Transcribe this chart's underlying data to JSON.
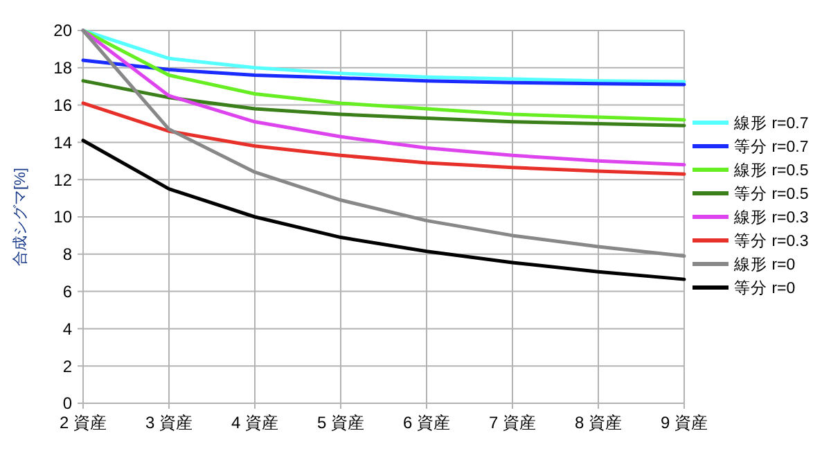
{
  "chart_data": {
    "type": "line",
    "ylabel": "合成シグマ[%]",
    "categories": [
      "2 資産",
      "3 資産",
      "4 資産",
      "5 資産",
      "6 資産",
      "7 資産",
      "8 資産",
      "9 資産"
    ],
    "ylim": [
      0,
      20
    ],
    "yticks": [
      0,
      2,
      4,
      6,
      8,
      10,
      12,
      14,
      16,
      18,
      20
    ],
    "grid": true,
    "legend": "right",
    "marker": "none",
    "series": [
      {
        "name": "線形 r=0.7",
        "color": "#55ffff",
        "values": [
          20,
          18.5,
          18.0,
          17.7,
          17.5,
          17.4,
          17.3,
          17.25
        ]
      },
      {
        "name": "等分 r=0.7",
        "color": "#1a2bff",
        "values": [
          18.4,
          17.9,
          17.6,
          17.45,
          17.3,
          17.2,
          17.15,
          17.1
        ]
      },
      {
        "name": "線形 r=0.5",
        "color": "#66ee22",
        "values": [
          20,
          17.6,
          16.6,
          16.1,
          15.8,
          15.5,
          15.35,
          15.2
        ]
      },
      {
        "name": "等分 r=0.5",
        "color": "#3a7f1a",
        "values": [
          17.3,
          16.4,
          15.8,
          15.5,
          15.3,
          15.1,
          15.0,
          14.9
        ]
      },
      {
        "name": "線形 r=0.3",
        "color": "#dd44ee",
        "values": [
          20,
          16.5,
          15.1,
          14.3,
          13.7,
          13.3,
          13.0,
          12.8
        ]
      },
      {
        "name": "等分 r=0.3",
        "color": "#e8302a",
        "values": [
          16.1,
          14.6,
          13.8,
          13.3,
          12.9,
          12.65,
          12.45,
          12.3
        ]
      },
      {
        "name": "線形 r=0",
        "color": "#888888",
        "values": [
          20,
          14.7,
          12.4,
          10.9,
          9.8,
          9.0,
          8.4,
          7.9
        ]
      },
      {
        "name": "等分 r=0",
        "color": "#000000",
        "values": [
          14.1,
          11.5,
          10.0,
          8.9,
          8.15,
          7.55,
          7.05,
          6.65
        ]
      }
    ]
  }
}
